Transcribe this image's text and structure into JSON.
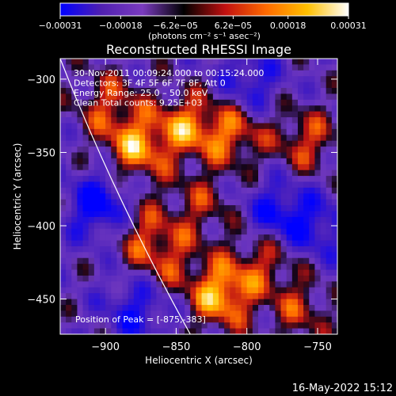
{
  "chart_data": {
    "type": "heatmap",
    "title": "Reconstructed RHESSI Image",
    "xlabel": "Heliocentric X (arcsec)",
    "ylabel": "Heliocentric Y (arcsec)",
    "xlim": [
      -932,
      -736
    ],
    "ylim": [
      -474,
      -286
    ],
    "x_ticks": [
      -900,
      -850,
      -800,
      -750
    ],
    "x_tick_labels": [
      "−900",
      "−850",
      "−800",
      "−750"
    ],
    "y_ticks": [
      -450,
      -400,
      -350,
      -300
    ],
    "y_tick_labels": [
      "−450",
      "−400",
      "−350",
      "−300"
    ],
    "colorbar": {
      "min": -0.00031,
      "max": 0.00031,
      "ticks": [
        -0.00031,
        -0.00018,
        -6.2e-05,
        6.2e-05,
        0.00018,
        0.00031
      ],
      "tick_labels": [
        "−0.00031",
        "−0.00018",
        "−6.2e−05",
        "6.2e−05",
        "0.00018",
        "0.00031"
      ],
      "unit_label": "(photons cm⁻² s⁻¹ asec⁻²)",
      "colors": [
        "#0000ff",
        "#5020b0",
        "#7a3bbf",
        "#000000",
        "#c01010",
        "#ff6a00",
        "#ffc000",
        "#ffffff"
      ]
    },
    "annotations": [
      "30-Nov-2011 00:09:24.000 to 00:15:24.000",
      "Detectors: 3F 4F 5F 6F 7F 8F, Att 0",
      "Energy Range: 25.0 – 50.0 keV",
      "Clean     Total counts: 9.25E+03"
    ],
    "peak_label": "Position of Peak = [-875,-383]",
    "peak_position": [
      -875,
      -383
    ],
    "limb_curve_x_at_ylim": [
      -932,
      -840
    ],
    "bright_regions": [
      {
        "x": -820,
        "y": -445,
        "intensity": 1.0
      },
      {
        "x": -880,
        "y": -345,
        "intensity": 0.85
      },
      {
        "x": -845,
        "y": -330,
        "intensity": 0.75
      },
      {
        "x": -812,
        "y": -335,
        "intensity": 0.7
      },
      {
        "x": -760,
        "y": -340,
        "intensity": 0.6
      },
      {
        "x": -900,
        "y": -315,
        "intensity": 0.55
      },
      {
        "x": -860,
        "y": -420,
        "intensity": 0.55
      },
      {
        "x": -880,
        "y": -400,
        "intensity": 0.5
      },
      {
        "x": -790,
        "y": -420,
        "intensity": 0.55
      },
      {
        "x": -765,
        "y": -455,
        "intensity": 0.5
      },
      {
        "x": -835,
        "y": -385,
        "intensity": 0.45
      }
    ],
    "dark_regions": [
      {
        "x": -905,
        "y": -385,
        "intensity": -0.9
      },
      {
        "x": -780,
        "y": -390,
        "intensity": -0.7
      },
      {
        "x": -880,
        "y": -455,
        "intensity": -0.6
      },
      {
        "x": -800,
        "y": -300,
        "intensity": -0.55
      },
      {
        "x": -750,
        "y": -400,
        "intensity": -0.5
      }
    ]
  },
  "footer": {
    "date": "16-May-2022 15:12"
  }
}
